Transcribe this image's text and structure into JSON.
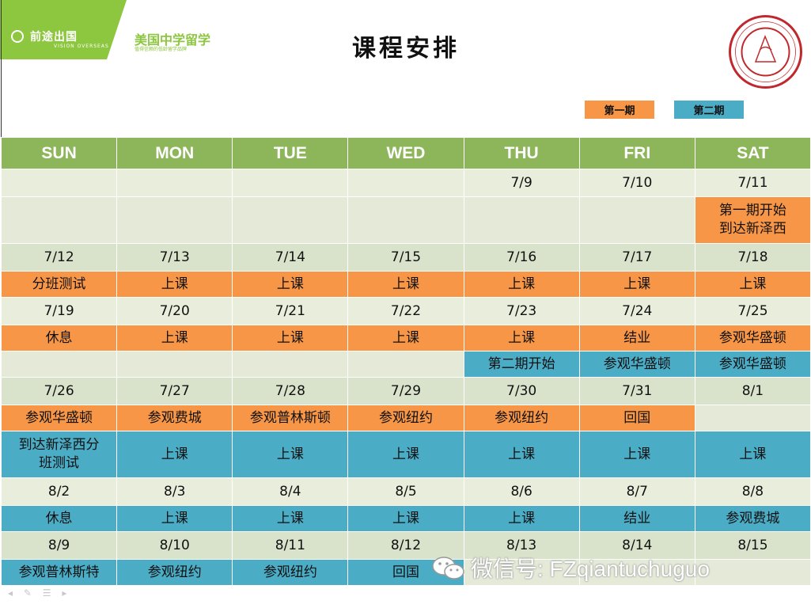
{
  "header": {
    "brand_name": "前途出国",
    "brand_tagline": "VISION OVERSEAS",
    "org_name": "美国中学留学",
    "org_tagline": "值得信赖的低龄留学品牌",
    "title": "课程安排"
  },
  "legend": [
    "第一期",
    "第二期"
  ],
  "colors": {
    "term1": "#f79646",
    "term2": "#4bacc6",
    "header": "#8db65a"
  },
  "days": [
    "SUN",
    "MON",
    "TUE",
    "WED",
    "THU",
    "FRI",
    "SAT"
  ],
  "rows": [
    {
      "type": "date",
      "cells": [
        "",
        "",
        "",
        "",
        "7/9",
        "7/10",
        "7/11"
      ]
    },
    {
      "type": "event",
      "cells": [
        [
          "",
          "g"
        ],
        [
          "",
          "g"
        ],
        [
          "",
          "g"
        ],
        [
          "",
          "g"
        ],
        [
          "",
          "g"
        ],
        [
          "",
          "g"
        ],
        [
          "第一期开始\n到达新泽西",
          "o"
        ]
      ]
    },
    {
      "type": "date",
      "cells": [
        "7/12",
        "7/13",
        "7/14",
        "7/15",
        "7/16",
        "7/17",
        "7/18"
      ]
    },
    {
      "type": "event",
      "cells": [
        [
          "分班测试",
          "o"
        ],
        [
          "上课",
          "o"
        ],
        [
          "上课",
          "o"
        ],
        [
          "上课",
          "o"
        ],
        [
          "上课",
          "o"
        ],
        [
          "上课",
          "o"
        ],
        [
          "上课",
          "o"
        ]
      ]
    },
    {
      "type": "date",
      "cells": [
        "7/19",
        "7/20",
        "7/21",
        "7/22",
        "7/23",
        "7/24",
        "7/25"
      ]
    },
    {
      "type": "event",
      "cells": [
        [
          "休息",
          "o"
        ],
        [
          "上课",
          "o"
        ],
        [
          "上课",
          "o"
        ],
        [
          "上课",
          "o"
        ],
        [
          "上课",
          "o"
        ],
        [
          "结业",
          "o"
        ],
        [
          "参观华盛顿",
          "o"
        ]
      ]
    },
    {
      "type": "event",
      "cells": [
        [
          "",
          "g"
        ],
        [
          "",
          "g"
        ],
        [
          "",
          "g"
        ],
        [
          "",
          "g"
        ],
        [
          "第二期开始",
          "b"
        ],
        [
          "参观华盛顿",
          "b"
        ],
        [
          "参观华盛顿",
          "b"
        ]
      ]
    },
    {
      "type": "date",
      "cells": [
        "7/26",
        "7/27",
        "7/28",
        "7/29",
        "7/30",
        "7/31",
        "8/1"
      ]
    },
    {
      "type": "event",
      "cells": [
        [
          "参观华盛顿",
          "o"
        ],
        [
          "参观费城",
          "o"
        ],
        [
          "参观普林斯顿",
          "o"
        ],
        [
          "参观纽约",
          "o"
        ],
        [
          "参观纽约",
          "o"
        ],
        [
          "回国",
          "o"
        ],
        [
          "",
          "g"
        ]
      ]
    },
    {
      "type": "event",
      "cells": [
        [
          "到达新泽西分\n班测试",
          "b"
        ],
        [
          "上课",
          "b"
        ],
        [
          "上课",
          "b"
        ],
        [
          "上课",
          "b"
        ],
        [
          "上课",
          "b"
        ],
        [
          "上课",
          "b"
        ],
        [
          "上课",
          "b"
        ]
      ]
    },
    {
      "type": "date",
      "cells": [
        "8/2",
        "8/3",
        "8/4",
        "8/5",
        "8/6",
        "8/7",
        "8/8"
      ]
    },
    {
      "type": "event",
      "cells": [
        [
          "休息",
          "b"
        ],
        [
          "上课",
          "b"
        ],
        [
          "上课",
          "b"
        ],
        [
          "上课",
          "b"
        ],
        [
          "上课",
          "b"
        ],
        [
          "结业",
          "b"
        ],
        [
          "参观费城",
          "b"
        ]
      ]
    },
    {
      "type": "date",
      "cells": [
        "8/9",
        "8/10",
        "8/11",
        "8/12",
        "8/13",
        "8/14",
        "8/15"
      ]
    },
    {
      "type": "event",
      "cells": [
        [
          "参观普林斯特",
          "b"
        ],
        [
          "参观纽约",
          "b"
        ],
        [
          "参观纽约",
          "b"
        ],
        [
          "回国",
          "b"
        ],
        [
          "",
          "g"
        ],
        [
          "",
          "g"
        ],
        [
          "",
          "g"
        ]
      ]
    }
  ],
  "watermark": "微信号: FZqiantuchuguo"
}
